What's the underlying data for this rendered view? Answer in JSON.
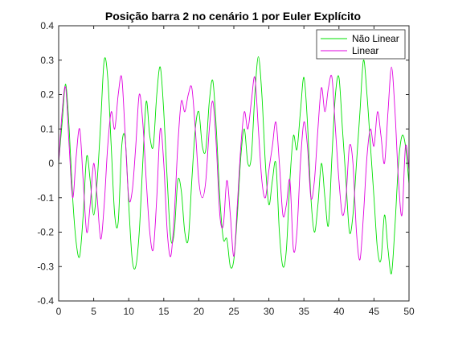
{
  "chart_data": {
    "type": "line",
    "title": "Posição barra 2 no cenário 1 por Euler Explícito",
    "xlabel": "",
    "ylabel": "",
    "xlim": [
      0,
      50
    ],
    "ylim": [
      -0.4,
      0.4
    ],
    "xticks": [
      0,
      5,
      10,
      15,
      20,
      25,
      30,
      35,
      40,
      45,
      50
    ],
    "yticks": [
      -0.4,
      -0.3,
      -0.2,
      -0.1,
      0,
      0.1,
      0.2,
      0.3,
      0.4
    ],
    "grid": false,
    "legend": "top-right",
    "series": [
      {
        "name": "Não Linear",
        "color": "#00e000",
        "x": [
          0,
          0.5,
          1.0,
          1.5,
          2.0,
          2.5,
          3.0,
          3.5,
          4.0,
          4.5,
          5.0,
          5.5,
          6.0,
          6.5,
          7.0,
          7.5,
          8.0,
          8.5,
          9.0,
          9.5,
          10.0,
          10.5,
          11.0,
          11.5,
          12.0,
          12.5,
          13.0,
          13.5,
          14.0,
          14.5,
          15.0,
          15.5,
          16.0,
          16.5,
          17.0,
          17.5,
          18.0,
          18.5,
          19.0,
          19.5,
          20.0,
          20.5,
          21.0,
          21.5,
          22.0,
          22.5,
          23.0,
          23.5,
          24.0,
          24.5,
          25.0,
          25.5,
          26.0,
          26.5,
          27.0,
          27.5,
          28.0,
          28.5,
          29.0,
          29.5,
          30.0,
          30.5,
          31.0,
          31.5,
          32.0,
          32.5,
          33.0,
          33.5,
          34.0,
          34.5,
          35.0,
          35.5,
          36.0,
          36.5,
          37.0,
          37.5,
          38.0,
          38.5,
          39.0,
          39.5,
          40.0,
          40.5,
          41.0,
          41.5,
          42.0,
          42.5,
          43.0,
          43.5,
          44.0,
          44.5,
          45.0,
          45.5,
          46.0,
          46.5,
          47.0,
          47.5,
          48.0,
          48.5,
          49.0,
          49.5,
          50.0
        ],
        "y": [
          0.0,
          0.12,
          0.23,
          0.1,
          -0.1,
          -0.23,
          -0.27,
          -0.15,
          0.02,
          -0.05,
          -0.15,
          -0.05,
          0.12,
          0.3,
          0.25,
          0.05,
          -0.15,
          -0.17,
          0.05,
          0.07,
          -0.12,
          -0.28,
          -0.3,
          -0.2,
          0.0,
          0.18,
          0.08,
          0.05,
          0.2,
          0.28,
          0.15,
          -0.05,
          -0.22,
          -0.2,
          -0.05,
          -0.08,
          -0.2,
          -0.22,
          -0.05,
          0.1,
          0.15,
          0.05,
          0.04,
          0.18,
          0.24,
          0.1,
          -0.1,
          -0.22,
          -0.22,
          -0.3,
          -0.28,
          -0.15,
          0.02,
          0.1,
          0.0,
          0.02,
          0.2,
          0.31,
          0.2,
          0.0,
          -0.12,
          -0.05,
          0.0,
          -0.2,
          -0.3,
          -0.25,
          -0.05,
          0.08,
          0.04,
          0.15,
          0.25,
          0.12,
          -0.1,
          -0.2,
          -0.12,
          0.0,
          -0.1,
          -0.18,
          0.02,
          0.2,
          0.25,
          0.1,
          -0.05,
          -0.2,
          -0.15,
          0.0,
          0.15,
          0.3,
          0.2,
          0.05,
          -0.1,
          -0.25,
          -0.28,
          -0.15,
          -0.25,
          -0.32,
          -0.18,
          0.0,
          0.08,
          0.05,
          -0.06
        ]
      },
      {
        "name": "Linear",
        "color": "#e000e0",
        "x": [
          0,
          0.5,
          1.0,
          1.5,
          2.0,
          2.5,
          3.0,
          3.5,
          4.0,
          4.5,
          5.0,
          5.5,
          6.0,
          6.5,
          7.0,
          7.5,
          8.0,
          8.5,
          9.0,
          9.5,
          10.0,
          10.5,
          11.0,
          11.5,
          12.0,
          12.5,
          13.0,
          13.5,
          14.0,
          14.5,
          15.0,
          15.5,
          16.0,
          16.5,
          17.0,
          17.5,
          18.0,
          18.5,
          19.0,
          19.5,
          20.0,
          20.5,
          21.0,
          21.5,
          22.0,
          22.5,
          23.0,
          23.5,
          24.0,
          24.5,
          25.0,
          25.5,
          26.0,
          26.5,
          27.0,
          27.5,
          28.0,
          28.5,
          29.0,
          29.5,
          30.0,
          30.5,
          31.0,
          31.5,
          32.0,
          32.5,
          33.0,
          33.5,
          34.0,
          34.5,
          35.0,
          35.5,
          36.0,
          36.5,
          37.0,
          37.5,
          38.0,
          38.5,
          39.0,
          39.5,
          40.0,
          40.5,
          41.0,
          41.5,
          42.0,
          42.5,
          43.0,
          43.5,
          44.0,
          44.5,
          45.0,
          45.5,
          46.0,
          46.5,
          47.0,
          47.5,
          48.0,
          48.5,
          49.0,
          49.5,
          50.0
        ],
        "y": [
          0.0,
          0.15,
          0.22,
          0.05,
          -0.1,
          0.02,
          0.1,
          -0.05,
          -0.2,
          -0.12,
          0.0,
          -0.1,
          -0.22,
          -0.12,
          0.05,
          0.15,
          0.1,
          0.2,
          0.25,
          0.08,
          -0.1,
          -0.08,
          0.05,
          0.2,
          0.12,
          -0.05,
          -0.2,
          -0.25,
          -0.1,
          0.1,
          0.0,
          -0.2,
          -0.27,
          -0.15,
          0.05,
          0.18,
          0.15,
          0.2,
          0.22,
          0.1,
          -0.05,
          -0.1,
          -0.05,
          0.1,
          0.18,
          0.05,
          -0.15,
          -0.18,
          -0.05,
          -0.15,
          -0.27,
          -0.12,
          0.05,
          0.15,
          0.1,
          0.18,
          0.25,
          0.1,
          -0.05,
          -0.1,
          -0.02,
          0.05,
          0.12,
          0.0,
          -0.15,
          -0.12,
          -0.05,
          -0.25,
          -0.2,
          0.0,
          0.12,
          0.05,
          -0.1,
          -0.05,
          0.1,
          0.22,
          0.15,
          0.22,
          0.25,
          0.1,
          -0.05,
          -0.15,
          -0.1,
          0.05,
          0.0,
          -0.2,
          -0.28,
          -0.15,
          0.02,
          0.1,
          0.05,
          0.15,
          0.08,
          0.0,
          0.15,
          0.28,
          0.15,
          -0.05,
          -0.15,
          0.05,
          -0.02
        ]
      }
    ]
  }
}
